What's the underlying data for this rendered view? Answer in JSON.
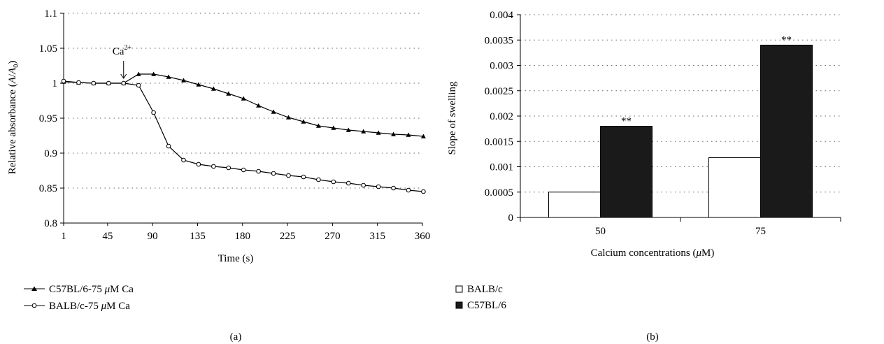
{
  "chart_data": [
    {
      "type": "line",
      "panel_label": "(a)",
      "xlabel": "Time (s)",
      "ylabel_main": "Relative absorbance (",
      "ylabel_a": "A",
      "ylabel_slash": "/",
      "ylabel_a0": "A",
      "ylabel_sub": "0",
      "ylabel_close": ")",
      "xlim": [
        1,
        360
      ],
      "ylim": [
        0.8,
        1.1
      ],
      "x_ticks": [
        1,
        45,
        90,
        135,
        180,
        225,
        270,
        315,
        360
      ],
      "x_tick_labels": [
        "1",
        "45",
        "90",
        "135",
        "180",
        "225",
        "270",
        "315",
        "360"
      ],
      "y_ticks": [
        0.8,
        0.85,
        0.9,
        0.95,
        1.0,
        1.05,
        1.1
      ],
      "y_tick_labels": [
        "0.8",
        "0.85",
        "0.9",
        "0.95",
        "1",
        "1.05",
        "1.1"
      ],
      "grid": "horizontal dotted",
      "legend_position": "bottom-left",
      "annotation": {
        "text": "Ca",
        "sup": "2+",
        "x": 61,
        "y": 1.0
      },
      "series": [
        {
          "name_prefix": "C57BL/6-75 ",
          "name_mu": "μ",
          "name_suffix": "M Ca",
          "marker": "triangle",
          "x": [
            1,
            16,
            31,
            46,
            61,
            76,
            91,
            106,
            121,
            136,
            151,
            166,
            181,
            196,
            211,
            226,
            241,
            256,
            271,
            286,
            301,
            316,
            331,
            346,
            361
          ],
          "y": [
            1.002,
            1.001,
            1.0,
            1.0,
            1.0,
            1.013,
            1.013,
            1.009,
            1.004,
            0.998,
            0.992,
            0.985,
            0.978,
            0.968,
            0.959,
            0.951,
            0.945,
            0.939,
            0.936,
            0.933,
            0.931,
            0.929,
            0.927,
            0.926,
            0.924
          ]
        },
        {
          "name_prefix": "BALB/c-75 ",
          "name_mu": "μ",
          "name_suffix": "M Ca",
          "marker": "circle",
          "x": [
            1,
            16,
            31,
            46,
            61,
            76,
            91,
            106,
            121,
            136,
            151,
            166,
            181,
            196,
            211,
            226,
            241,
            256,
            271,
            286,
            301,
            316,
            331,
            346,
            361
          ],
          "y": [
            1.003,
            1.001,
            1.0,
            1.0,
            1.0,
            0.997,
            0.958,
            0.91,
            0.89,
            0.884,
            0.881,
            0.879,
            0.876,
            0.874,
            0.871,
            0.868,
            0.866,
            0.862,
            0.859,
            0.857,
            0.854,
            0.852,
            0.85,
            0.847,
            0.845
          ]
        }
      ]
    },
    {
      "type": "bar",
      "panel_label": "(b)",
      "xlabel_prefix": "Calcium concentrations (",
      "xlabel_mu": "μ",
      "xlabel_suffix": "M)",
      "ylabel": "Slope of swelling",
      "ylim": [
        0,
        0.004
      ],
      "y_ticks": [
        0,
        0.0005,
        0.001,
        0.0015,
        0.002,
        0.0025,
        0.003,
        0.0035,
        0.004
      ],
      "y_tick_labels": [
        "0",
        "0.0005",
        "0.001",
        "0.0015",
        "0.002",
        "0.0025",
        "0.003",
        "0.0035",
        "0.004"
      ],
      "grid": "horizontal dotted",
      "legend_position": "bottom-left",
      "categories": [
        "50",
        "75"
      ],
      "series": [
        {
          "name": "BALB/c",
          "fill": "#ffffff",
          "values": [
            0.0005,
            0.00118
          ],
          "labels": [
            "",
            ""
          ]
        },
        {
          "name": "C57BL/6",
          "fill": "#1a1a1a",
          "values": [
            0.0018,
            0.0034
          ],
          "labels": [
            "**",
            "**"
          ]
        }
      ]
    }
  ]
}
